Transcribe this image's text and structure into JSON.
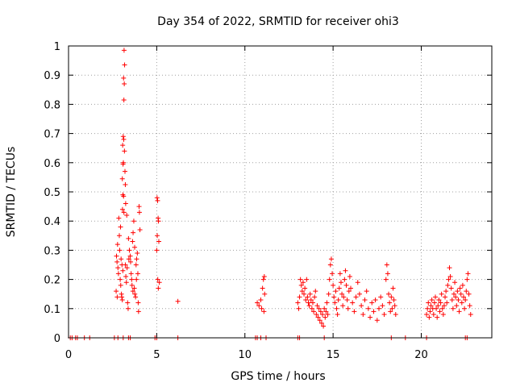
{
  "chart_data": {
    "type": "scatter",
    "title": "Day 354 of 2022, SRMTID for receiver ohi3",
    "xlabel": "GPS time / hours",
    "ylabel": "SRMTID / TECUs",
    "xlim": [
      0,
      24
    ],
    "ylim": [
      0,
      1
    ],
    "xticks": [
      0,
      5,
      10,
      15,
      20
    ],
    "yticks": [
      0,
      0.1,
      0.2,
      0.3,
      0.4,
      0.5,
      0.6,
      0.7,
      0.8,
      0.9,
      1
    ],
    "xtick_labels": [
      "0",
      "5",
      "10",
      "15",
      "20"
    ],
    "ytick_labels": [
      "0",
      "0.1",
      "0.2",
      "0.3",
      "0.4",
      "0.5",
      "0.6",
      "0.7",
      "0.8",
      "0.9",
      "1"
    ],
    "grid": true,
    "marker": "plus",
    "color": "#ff0000",
    "series": [
      {
        "name": "SRMTID",
        "points": [
          [
            0.1,
            0
          ],
          [
            0.2,
            0
          ],
          [
            0.4,
            0
          ],
          [
            0.5,
            0
          ],
          [
            0.9,
            0
          ],
          [
            1.2,
            0
          ],
          [
            2.6,
            0
          ],
          [
            2.8,
            0
          ],
          [
            3.1,
            0
          ],
          [
            3.4,
            0
          ],
          [
            3.5,
            0
          ],
          [
            4.9,
            0
          ],
          [
            5.0,
            0
          ],
          [
            6.2,
            0
          ],
          [
            10.6,
            0
          ],
          [
            10.7,
            0
          ],
          [
            10.9,
            0
          ],
          [
            11.2,
            0
          ],
          [
            13.0,
            0
          ],
          [
            13.1,
            0
          ],
          [
            14.5,
            0
          ],
          [
            18.3,
            0
          ],
          [
            19.1,
            0
          ],
          [
            20.3,
            0
          ],
          [
            22.5,
            0
          ],
          [
            22.6,
            0
          ],
          [
            3.15,
            0.985
          ],
          [
            3.18,
            0.935
          ],
          [
            3.12,
            0.89
          ],
          [
            3.16,
            0.87
          ],
          [
            3.14,
            0.815
          ],
          [
            3.1,
            0.69
          ],
          [
            3.13,
            0.68
          ],
          [
            3.07,
            0.66
          ],
          [
            3.17,
            0.64
          ],
          [
            3.11,
            0.6
          ],
          [
            3.09,
            0.595
          ],
          [
            3.2,
            0.57
          ],
          [
            3.05,
            0.545
          ],
          [
            3.22,
            0.525
          ],
          [
            3.08,
            0.49
          ],
          [
            3.12,
            0.485
          ],
          [
            3.24,
            0.46
          ],
          [
            3.06,
            0.44
          ],
          [
            3.14,
            0.43
          ],
          [
            2.85,
            0.41
          ],
          [
            2.95,
            0.38
          ],
          [
            3.3,
            0.42
          ],
          [
            2.72,
            0.28
          ],
          [
            2.75,
            0.26
          ],
          [
            2.8,
            0.24
          ],
          [
            2.83,
            0.22
          ],
          [
            2.9,
            0.3
          ],
          [
            2.93,
            0.2
          ],
          [
            2.96,
            0.18
          ],
          [
            3.0,
            0.15
          ],
          [
            3.02,
            0.14
          ],
          [
            3.05,
            0.13
          ],
          [
            2.78,
            0.32
          ],
          [
            2.88,
            0.35
          ],
          [
            2.98,
            0.27
          ],
          [
            3.03,
            0.25
          ],
          [
            3.08,
            0.23
          ],
          [
            3.25,
            0.21
          ],
          [
            3.28,
            0.19
          ],
          [
            3.32,
            0.24
          ],
          [
            3.35,
            0.12
          ],
          [
            3.38,
            0.1
          ],
          [
            3.4,
            0.34
          ],
          [
            3.45,
            0.3
          ],
          [
            3.5,
            0.28
          ],
          [
            3.52,
            0.26
          ],
          [
            3.55,
            0.22
          ],
          [
            3.58,
            0.2
          ],
          [
            3.6,
            0.18
          ],
          [
            3.63,
            0.33
          ],
          [
            3.66,
            0.36
          ],
          [
            3.7,
            0.4
          ],
          [
            3.73,
            0.17
          ],
          [
            3.76,
            0.15
          ],
          [
            3.8,
            0.14
          ],
          [
            3.83,
            0.25
          ],
          [
            3.86,
            0.27
          ],
          [
            3.9,
            0.29
          ],
          [
            3.93,
            0.22
          ],
          [
            3.95,
            0.12
          ],
          [
            3.97,
            0.09
          ],
          [
            4.0,
            0.45
          ],
          [
            4.02,
            0.43
          ],
          [
            4.05,
            0.37
          ],
          [
            3.85,
            0.2
          ],
          [
            3.75,
            0.31
          ],
          [
            3.65,
            0.16
          ],
          [
            3.42,
            0.27
          ],
          [
            3.22,
            0.25
          ],
          [
            2.7,
            0.16
          ],
          [
            2.76,
            0.14
          ],
          [
            5.02,
            0.48
          ],
          [
            5.05,
            0.47
          ],
          [
            5.08,
            0.41
          ],
          [
            5.1,
            0.4
          ],
          [
            5.03,
            0.35
          ],
          [
            5.12,
            0.33
          ],
          [
            5.0,
            0.3
          ],
          [
            5.06,
            0.2
          ],
          [
            5.15,
            0.19
          ],
          [
            5.09,
            0.17
          ],
          [
            6.2,
            0.125
          ],
          [
            10.7,
            0.12
          ],
          [
            10.8,
            0.11
          ],
          [
            10.9,
            0.13
          ],
          [
            11.0,
            0.17
          ],
          [
            11.05,
            0.2
          ],
          [
            11.1,
            0.21
          ],
          [
            10.95,
            0.1
          ],
          [
            11.08,
            0.09
          ],
          [
            11.12,
            0.15
          ],
          [
            13.0,
            0.12
          ],
          [
            13.05,
            0.1
          ],
          [
            13.1,
            0.14
          ],
          [
            13.15,
            0.2
          ],
          [
            13.2,
            0.18
          ],
          [
            13.25,
            0.16
          ],
          [
            13.3,
            0.19
          ],
          [
            13.35,
            0.15
          ],
          [
            13.4,
            0.17
          ],
          [
            13.45,
            0.13
          ],
          [
            13.5,
            0.2
          ],
          [
            13.55,
            0.14
          ],
          [
            13.6,
            0.12
          ],
          [
            13.65,
            0.11
          ],
          [
            13.7,
            0.15
          ],
          [
            13.75,
            0.13
          ],
          [
            13.8,
            0.1
          ],
          [
            13.85,
            0.12
          ],
          [
            13.9,
            0.09
          ],
          [
            13.95,
            0.14
          ],
          [
            14.0,
            0.16
          ],
          [
            14.05,
            0.08
          ],
          [
            14.1,
            0.11
          ],
          [
            14.15,
            0.07
          ],
          [
            14.2,
            0.1
          ],
          [
            14.25,
            0.06
          ],
          [
            14.3,
            0.09
          ],
          [
            14.35,
            0.05
          ],
          [
            14.4,
            0.08
          ],
          [
            14.45,
            0.04
          ],
          [
            14.5,
            0.1
          ],
          [
            14.55,
            0.07
          ],
          [
            14.6,
            0.09
          ],
          [
            14.65,
            0.12
          ],
          [
            14.7,
            0.08
          ],
          [
            14.75,
            0.15
          ],
          [
            14.8,
            0.2
          ],
          [
            14.85,
            0.25
          ],
          [
            14.9,
            0.27
          ],
          [
            14.95,
            0.22
          ],
          [
            15.0,
            0.18
          ],
          [
            15.05,
            0.14
          ],
          [
            15.1,
            0.12
          ],
          [
            15.15,
            0.16
          ],
          [
            15.2,
            0.1
          ],
          [
            15.25,
            0.08
          ],
          [
            15.3,
            0.13
          ],
          [
            15.35,
            0.17
          ],
          [
            15.4,
            0.22
          ],
          [
            15.45,
            0.19
          ],
          [
            15.5,
            0.15
          ],
          [
            15.55,
            0.11
          ],
          [
            15.6,
            0.14
          ],
          [
            15.65,
            0.2
          ],
          [
            15.7,
            0.23
          ],
          [
            15.75,
            0.18
          ],
          [
            15.8,
            0.13
          ],
          [
            15.85,
            0.1
          ],
          [
            15.9,
            0.16
          ],
          [
            15.95,
            0.21
          ],
          [
            16.0,
            0.17
          ],
          [
            16.1,
            0.12
          ],
          [
            16.2,
            0.09
          ],
          [
            16.3,
            0.14
          ],
          [
            16.4,
            0.19
          ],
          [
            16.5,
            0.15
          ],
          [
            16.6,
            0.11
          ],
          [
            16.7,
            0.08
          ],
          [
            16.8,
            0.13
          ],
          [
            16.9,
            0.16
          ],
          [
            17.0,
            0.1
          ],
          [
            17.1,
            0.07
          ],
          [
            17.2,
            0.12
          ],
          [
            17.3,
            0.09
          ],
          [
            17.4,
            0.13
          ],
          [
            17.5,
            0.06
          ],
          [
            17.6,
            0.1
          ],
          [
            17.7,
            0.14
          ],
          [
            17.8,
            0.11
          ],
          [
            17.9,
            0.08
          ],
          [
            18.0,
            0.2
          ],
          [
            18.05,
            0.25
          ],
          [
            18.1,
            0.22
          ],
          [
            18.15,
            0.15
          ],
          [
            18.2,
            0.12
          ],
          [
            18.25,
            0.09
          ],
          [
            18.3,
            0.14
          ],
          [
            18.35,
            0.1
          ],
          [
            18.4,
            0.17
          ],
          [
            18.45,
            0.13
          ],
          [
            18.5,
            0.11
          ],
          [
            18.55,
            0.08
          ],
          [
            20.3,
            0.08
          ],
          [
            20.35,
            0.1
          ],
          [
            20.4,
            0.12
          ],
          [
            20.45,
            0.07
          ],
          [
            20.5,
            0.09
          ],
          [
            20.55,
            0.11
          ],
          [
            20.6,
            0.13
          ],
          [
            20.65,
            0.1
          ],
          [
            20.7,
            0.08
          ],
          [
            20.75,
            0.12
          ],
          [
            20.8,
            0.14
          ],
          [
            20.85,
            0.1
          ],
          [
            20.9,
            0.07
          ],
          [
            20.95,
            0.11
          ],
          [
            21.0,
            0.13
          ],
          [
            21.05,
            0.09
          ],
          [
            21.1,
            0.12
          ],
          [
            21.15,
            0.15
          ],
          [
            21.2,
            0.1
          ],
          [
            21.25,
            0.08
          ],
          [
            21.3,
            0.11
          ],
          [
            21.35,
            0.14
          ],
          [
            21.4,
            0.16
          ],
          [
            21.45,
            0.12
          ],
          [
            21.5,
            0.18
          ],
          [
            21.55,
            0.2
          ],
          [
            21.6,
            0.24
          ],
          [
            21.65,
            0.21
          ],
          [
            21.7,
            0.17
          ],
          [
            21.75,
            0.13
          ],
          [
            21.8,
            0.1
          ],
          [
            21.85,
            0.15
          ],
          [
            21.9,
            0.19
          ],
          [
            21.95,
            0.14
          ],
          [
            22.0,
            0.11
          ],
          [
            22.05,
            0.16
          ],
          [
            22.1,
            0.13
          ],
          [
            22.15,
            0.09
          ],
          [
            22.2,
            0.17
          ],
          [
            22.25,
            0.15
          ],
          [
            22.3,
            0.12
          ],
          [
            22.35,
            0.18
          ],
          [
            22.4,
            0.14
          ],
          [
            22.45,
            0.1
          ],
          [
            22.5,
            0.13
          ],
          [
            22.55,
            0.16
          ],
          [
            22.6,
            0.2
          ],
          [
            22.65,
            0.22
          ],
          [
            22.7,
            0.15
          ],
          [
            22.75,
            0.11
          ],
          [
            22.8,
            0.08
          ]
        ]
      }
    ]
  }
}
